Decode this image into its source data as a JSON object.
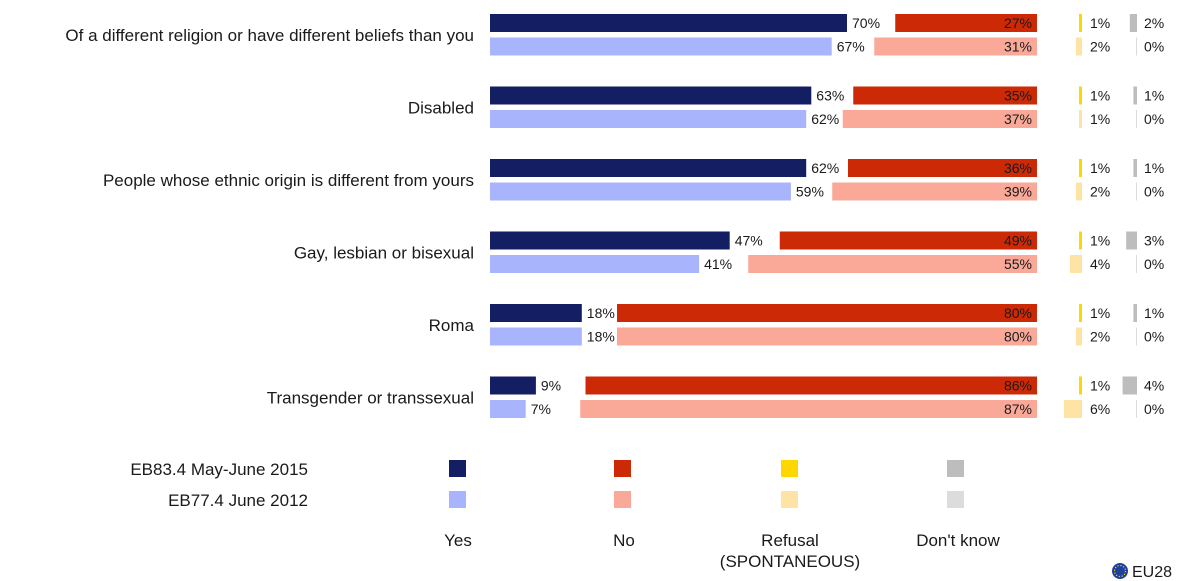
{
  "chart_data": {
    "type": "bar",
    "orientation": "horizontal",
    "stacked_segments": true,
    "categories": [
      "Of a different religion or have different beliefs than you",
      "Disabled",
      "People whose ethnic origin is different from yours",
      "Gay, lesbian or bisexual",
      "Roma",
      "Transgender or transsexual"
    ],
    "series": [
      {
        "name": "EB83.4 May-June 2015",
        "yes": [
          70,
          63,
          62,
          47,
          18,
          9
        ],
        "no": [
          27,
          35,
          36,
          49,
          80,
          86
        ],
        "refusal": [
          1,
          1,
          1,
          1,
          1,
          1
        ],
        "dont_know": [
          2,
          1,
          1,
          3,
          1,
          4
        ]
      },
      {
        "name": "EB77.4 June 2012",
        "yes": [
          67,
          62,
          59,
          41,
          18,
          7
        ],
        "no": [
          31,
          37,
          39,
          55,
          80,
          87
        ],
        "refusal": [
          2,
          1,
          2,
          4,
          2,
          6
        ],
        "dont_know": [
          0,
          0,
          0,
          0,
          0,
          0
        ]
      }
    ],
    "answer_labels": [
      "Yes",
      "No",
      "Refusal (SPONTANEOUS)",
      "Don't know"
    ],
    "answer_label_lines": [
      [
        "Yes"
      ],
      [
        "No"
      ],
      [
        "Refusal",
        "(SPONTANEOUS)"
      ],
      [
        "Don't know"
      ]
    ],
    "colors": {
      "EB83.4 May-June 2015": {
        "yes": "#141f63",
        "no": "#cc2a06",
        "refusal": "#ffd700",
        "dont_know": "#bdbdbd"
      },
      "EB77.4 June 2012": {
        "yes": "#a8b4fb",
        "no": "#faa897",
        "refusal": "#fde4a5",
        "dont_know": "#dcdcdc"
      }
    },
    "value_suffix": "%",
    "source_label": "EU28",
    "source_icon": "eu-flag-icon"
  }
}
